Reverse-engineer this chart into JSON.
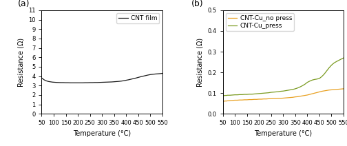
{
  "panel_a": {
    "label": "CNT film",
    "color": "#1a1a1a",
    "x": [
      50,
      55,
      60,
      65,
      70,
      75,
      80,
      85,
      90,
      95,
      100,
      110,
      120,
      130,
      140,
      150,
      160,
      170,
      180,
      190,
      200,
      210,
      220,
      230,
      240,
      250,
      260,
      270,
      280,
      290,
      300,
      310,
      320,
      330,
      340,
      350,
      360,
      370,
      380,
      390,
      400,
      410,
      420,
      430,
      440,
      450,
      460,
      470,
      480,
      490,
      500,
      510,
      520,
      530,
      540,
      550
    ],
    "y": [
      3.82,
      3.72,
      3.62,
      3.55,
      3.5,
      3.46,
      3.43,
      3.41,
      3.39,
      3.37,
      3.36,
      3.34,
      3.33,
      3.32,
      3.32,
      3.31,
      3.31,
      3.3,
      3.3,
      3.3,
      3.3,
      3.3,
      3.3,
      3.31,
      3.31,
      3.32,
      3.32,
      3.33,
      3.33,
      3.34,
      3.35,
      3.36,
      3.37,
      3.38,
      3.39,
      3.41,
      3.43,
      3.45,
      3.48,
      3.52,
      3.57,
      3.62,
      3.68,
      3.74,
      3.8,
      3.87,
      3.94,
      4.0,
      4.06,
      4.12,
      4.17,
      4.2,
      4.23,
      4.25,
      4.27,
      4.3
    ],
    "ylim": [
      0,
      11
    ],
    "yticks": [
      0,
      1,
      2,
      3,
      4,
      5,
      6,
      7,
      8,
      9,
      10,
      11
    ],
    "xlim": [
      50,
      550
    ],
    "xticks": [
      50,
      100,
      150,
      200,
      250,
      300,
      350,
      400,
      450,
      500,
      550
    ],
    "xlabel": "Temperature (°C)",
    "ylabel": "Resistance (Ω)",
    "panel_label": "(a)"
  },
  "panel_b": {
    "no_press": {
      "label": "CNT-Cu_no press",
      "color": "#e8a020",
      "x": [
        50,
        55,
        60,
        65,
        70,
        75,
        80,
        90,
        100,
        110,
        120,
        130,
        140,
        150,
        160,
        170,
        180,
        190,
        200,
        210,
        220,
        230,
        240,
        250,
        260,
        270,
        280,
        290,
        300,
        310,
        320,
        330,
        340,
        350,
        360,
        370,
        380,
        390,
        400,
        410,
        420,
        430,
        440,
        450,
        460,
        470,
        480,
        490,
        500,
        510,
        520,
        530,
        540,
        550
      ],
      "y": [
        0.06,
        0.061,
        0.062,
        0.062,
        0.063,
        0.063,
        0.064,
        0.065,
        0.066,
        0.066,
        0.067,
        0.067,
        0.068,
        0.068,
        0.069,
        0.069,
        0.07,
        0.07,
        0.071,
        0.071,
        0.072,
        0.072,
        0.073,
        0.073,
        0.074,
        0.074,
        0.075,
        0.075,
        0.076,
        0.077,
        0.078,
        0.079,
        0.08,
        0.082,
        0.083,
        0.085,
        0.087,
        0.089,
        0.091,
        0.094,
        0.097,
        0.1,
        0.103,
        0.106,
        0.109,
        0.111,
        0.113,
        0.115,
        0.116,
        0.117,
        0.118,
        0.119,
        0.12,
        0.121
      ]
    },
    "press": {
      "label": "CNT-Cu_press",
      "color": "#7a9a20",
      "x": [
        50,
        55,
        60,
        65,
        70,
        75,
        80,
        90,
        100,
        110,
        120,
        130,
        140,
        150,
        160,
        170,
        180,
        190,
        200,
        210,
        220,
        230,
        240,
        250,
        260,
        270,
        280,
        290,
        300,
        310,
        320,
        330,
        340,
        350,
        360,
        370,
        380,
        390,
        400,
        410,
        420,
        430,
        440,
        450,
        460,
        470,
        480,
        490,
        500,
        510,
        520,
        530,
        540,
        550
      ],
      "y": [
        0.088,
        0.088,
        0.089,
        0.089,
        0.09,
        0.09,
        0.09,
        0.091,
        0.092,
        0.092,
        0.093,
        0.093,
        0.094,
        0.094,
        0.095,
        0.095,
        0.096,
        0.097,
        0.098,
        0.099,
        0.1,
        0.101,
        0.102,
        0.104,
        0.105,
        0.106,
        0.107,
        0.109,
        0.11,
        0.112,
        0.114,
        0.116,
        0.118,
        0.121,
        0.125,
        0.13,
        0.136,
        0.143,
        0.152,
        0.158,
        0.163,
        0.166,
        0.168,
        0.171,
        0.18,
        0.192,
        0.207,
        0.222,
        0.235,
        0.245,
        0.252,
        0.258,
        0.264,
        0.27
      ]
    },
    "ylim": [
      0.0,
      0.5
    ],
    "yticks": [
      0.0,
      0.1,
      0.2,
      0.3,
      0.4,
      0.5
    ],
    "xlim": [
      50,
      550
    ],
    "xticks": [
      50,
      100,
      150,
      200,
      250,
      300,
      350,
      400,
      450,
      500,
      550
    ],
    "xlabel": "Temperature (°C)",
    "ylabel": "Resistance (Ω)",
    "panel_label": "(b)"
  }
}
